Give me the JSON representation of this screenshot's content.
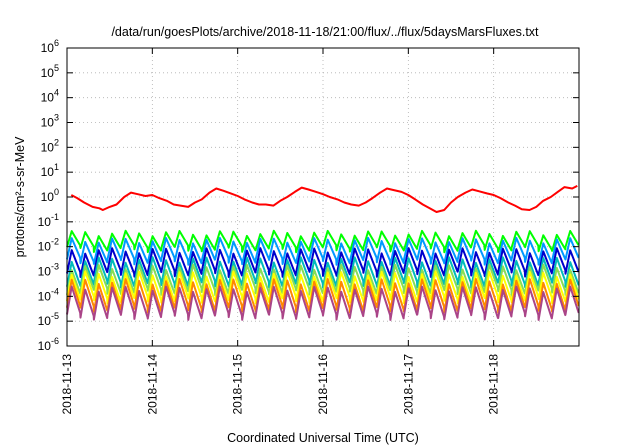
{
  "chart_data": {
    "type": "line",
    "title": "/data/run/goesPlots/archive/2018-11-18/21:00/flux/../flux/5daysMarsFluxes.txt",
    "xlabel": "Coordinated Universal Time (UTC)",
    "ylabel": "protons/cm²-s-sr-MeV",
    "yscale": "log",
    "ylim": [
      1e-06,
      1000000.0
    ],
    "xlim": [
      "2018-11-13",
      "2018-11-19"
    ],
    "grid": true,
    "x_ticks": [
      "2018-11-13",
      "2018-11-14",
      "2018-11-15",
      "2018-11-16",
      "2018-11-17",
      "2018-11-18"
    ],
    "y_ticks": [
      {
        "base": "10",
        "exp": "-6"
      },
      {
        "base": "10",
        "exp": "-5"
      },
      {
        "base": "10",
        "exp": "-4"
      },
      {
        "base": "10",
        "exp": "-3"
      },
      {
        "base": "10",
        "exp": "-2"
      },
      {
        "base": "10",
        "exp": "-1"
      },
      {
        "base": "10",
        "exp": "0"
      },
      {
        "base": "10",
        "exp": "1"
      },
      {
        "base": "10",
        "exp": "2"
      },
      {
        "base": "10",
        "exp": "3"
      },
      {
        "base": "10",
        "exp": "4"
      },
      {
        "base": "10",
        "exp": "5"
      },
      {
        "base": "10",
        "exp": "6"
      }
    ],
    "series": [
      {
        "color": "#ff0000",
        "pattern": "diurnal",
        "days": [
          0.05,
          0.12,
          0.2,
          0.3,
          0.38,
          0.42,
          0.5,
          0.58,
          0.67,
          0.75,
          0.83,
          0.92,
          1.0,
          1.08,
          1.17,
          1.25,
          1.33,
          1.42,
          1.5,
          1.58,
          1.67,
          1.75,
          1.83,
          1.92,
          2.0,
          2.08,
          2.17,
          2.25,
          2.33,
          2.42,
          2.5,
          2.58,
          2.67,
          2.75,
          2.83,
          2.92,
          3.0,
          3.08,
          3.17,
          3.25,
          3.33,
          3.42,
          3.5,
          3.58,
          3.67,
          3.75,
          3.83,
          3.92,
          4.0,
          4.08,
          4.17,
          4.25,
          4.33,
          4.42,
          4.5,
          4.58,
          4.67,
          4.75,
          4.83,
          4.92,
          5.0,
          5.08,
          5.17,
          5.25,
          5.33,
          5.42,
          5.5,
          5.58,
          5.67,
          5.75,
          5.83,
          5.92,
          5.98
        ],
        "values": [
          1.2,
          0.9,
          0.6,
          0.4,
          0.35,
          0.3,
          0.4,
          0.5,
          1.0,
          1.5,
          1.3,
          1.1,
          1.2,
          0.9,
          0.7,
          0.5,
          0.45,
          0.4,
          0.6,
          0.8,
          1.5,
          2.2,
          1.8,
          1.4,
          1.1,
          0.8,
          0.6,
          0.5,
          0.5,
          0.45,
          0.7,
          1.0,
          1.6,
          2.4,
          2.0,
          1.6,
          1.3,
          1.0,
          0.8,
          0.6,
          0.5,
          0.45,
          0.6,
          0.9,
          1.5,
          2.2,
          1.9,
          1.6,
          1.2,
          0.8,
          0.5,
          0.35,
          0.25,
          0.3,
          0.6,
          1.0,
          1.5,
          2.0,
          1.7,
          1.4,
          1.2,
          0.9,
          0.6,
          0.45,
          0.32,
          0.3,
          0.4,
          0.7,
          1.0,
          1.6,
          2.5,
          2.2,
          2.8
        ]
      },
      {
        "color": "#00ff00",
        "level": 0.018,
        "min": 0.008,
        "max": 0.035
      },
      {
        "color": "#0099ff",
        "level": 0.008,
        "min": 0.0025,
        "max": 0.018
      },
      {
        "color": "#0000cc",
        "level": 0.003,
        "min": 0.0008,
        "max": 0.007
      },
      {
        "color": "#00bbbb",
        "level": 0.0012,
        "min": 0.0003,
        "max": 0.003
      },
      {
        "color": "#88dd55",
        "level": 0.0005,
        "min": 0.00015,
        "max": 0.0015
      },
      {
        "color": "#ffff00",
        "level": 0.00025,
        "min": 7e-05,
        "max": 0.0008
      },
      {
        "color": "#ff8800",
        "level": 0.00012,
        "min": 3e-05,
        "max": 0.0004
      },
      {
        "color": "#aa4488",
        "level": 6e-05,
        "min": 1.5e-05,
        "max": 0.0002
      }
    ]
  }
}
